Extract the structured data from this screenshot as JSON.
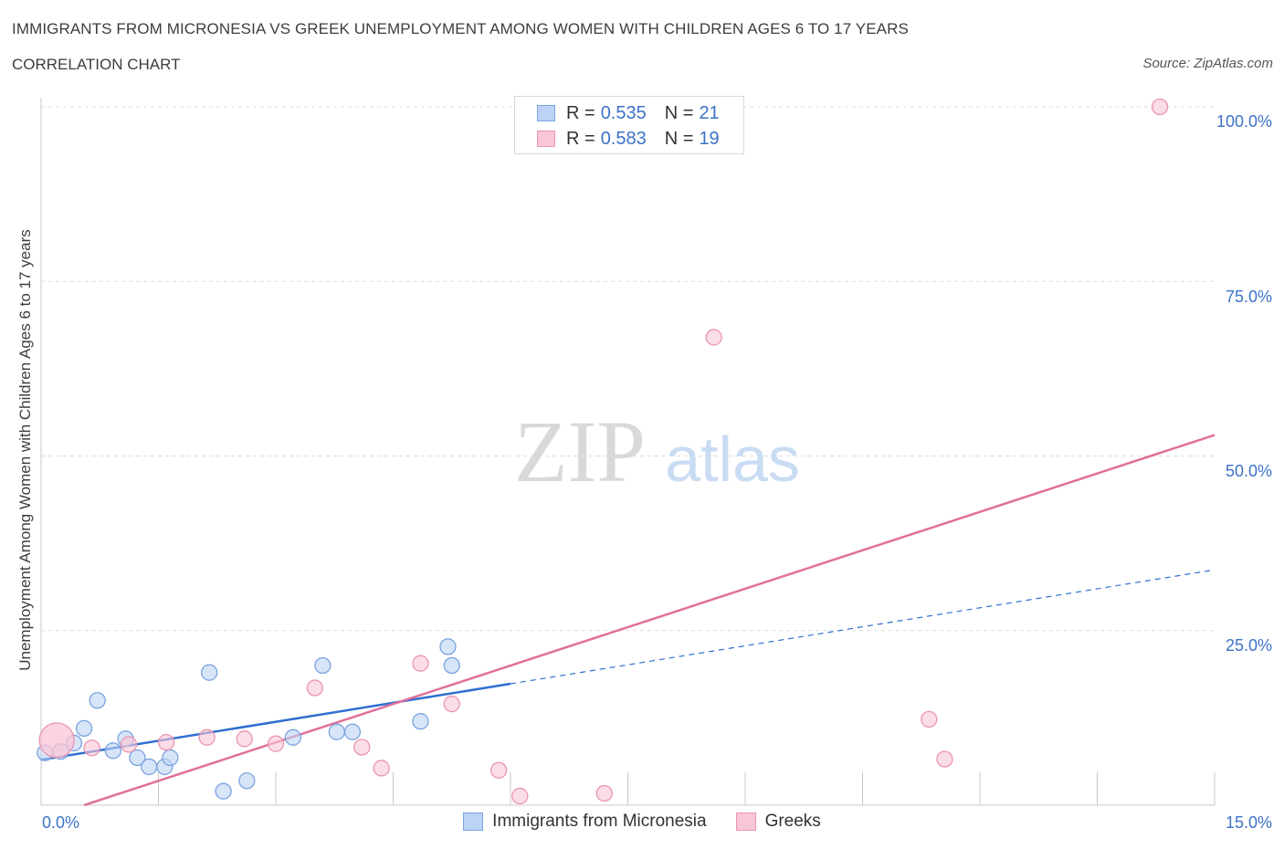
{
  "title": "IMMIGRANTS FROM MICRONESIA VS GREEK UNEMPLOYMENT AMONG WOMEN WITH CHILDREN AGES 6 TO 17 YEARS",
  "subtitle": "CORRELATION CHART",
  "source": "Source: ZipAtlas.com",
  "watermark": {
    "zip": "ZIP",
    "atlas": "atlas"
  },
  "stats": [
    {
      "r_label": "R = ",
      "r_value": "0.535",
      "n_label": "N = ",
      "n_value": "21",
      "fill": "#bcd3f5",
      "stroke": "#7aa3e0"
    },
    {
      "r_label": "R = ",
      "r_value": "0.583",
      "n_label": "N = ",
      "n_value": "19",
      "fill": "#f9c6d5",
      "stroke": "#e996b1"
    }
  ],
  "chart_data": {
    "type": "scatter",
    "title": "IMMIGRANTS FROM MICRONESIA VS GREEK UNEMPLOYMENT AMONG WOMEN WITH CHILDREN AGES 6 TO 17 YEARS",
    "xlabel": "",
    "ylabel": "Unemployment Among Women with Children Ages 6 to 17 years",
    "xlim": [
      0,
      15
    ],
    "ylim": [
      0,
      100
    ],
    "x_tick_labels": [
      "0.0%",
      "15.0%"
    ],
    "y_tick_labels": [
      "100.0%",
      "75.0%",
      "50.0%",
      "25.0%"
    ],
    "y_tick_values": [
      100,
      75,
      50,
      25
    ],
    "grid": true,
    "series": [
      {
        "name": "Immigrants from Micronesia",
        "color": "#7aa3e0",
        "fill": "#bcd3f5",
        "line_color": "#2f6fd0",
        "points": [
          {
            "x": 0.05,
            "y": 7.5
          },
          {
            "x": 0.25,
            "y": 7.7
          },
          {
            "x": 0.42,
            "y": 8.9
          },
          {
            "x": 0.55,
            "y": 11.0
          },
          {
            "x": 0.72,
            "y": 15.0
          },
          {
            "x": 0.92,
            "y": 7.8
          },
          {
            "x": 1.08,
            "y": 9.5
          },
          {
            "x": 1.23,
            "y": 6.8
          },
          {
            "x": 1.38,
            "y": 5.5
          },
          {
            "x": 1.58,
            "y": 5.5
          },
          {
            "x": 1.65,
            "y": 6.8
          },
          {
            "x": 2.15,
            "y": 19.0
          },
          {
            "x": 2.33,
            "y": 2.0
          },
          {
            "x": 2.63,
            "y": 3.5
          },
          {
            "x": 3.22,
            "y": 9.7
          },
          {
            "x": 3.6,
            "y": 20.0
          },
          {
            "x": 3.78,
            "y": 10.5
          },
          {
            "x": 3.98,
            "y": 10.5
          },
          {
            "x": 4.85,
            "y": 12.0
          },
          {
            "x": 5.2,
            "y": 22.7
          },
          {
            "x": 5.25,
            "y": 20.0
          }
        ],
        "trend": {
          "x_start": 0,
          "y_start": 6.5,
          "x_solid_end": 6.0,
          "x_end": 15.0,
          "y_end": 33.7
        }
      },
      {
        "name": "Greeks",
        "color": "#e996b1",
        "fill": "#f9c6d5",
        "line_color": "#e0709a",
        "points": [
          {
            "x": 0.2,
            "y": 9.3,
            "big": true
          },
          {
            "x": 0.65,
            "y": 8.2
          },
          {
            "x": 1.12,
            "y": 8.7
          },
          {
            "x": 1.6,
            "y": 9.0
          },
          {
            "x": 2.12,
            "y": 9.7
          },
          {
            "x": 2.6,
            "y": 9.5
          },
          {
            "x": 3.0,
            "y": 8.8
          },
          {
            "x": 3.5,
            "y": 16.8
          },
          {
            "x": 4.1,
            "y": 8.3
          },
          {
            "x": 4.35,
            "y": 5.3
          },
          {
            "x": 4.85,
            "y": 20.3
          },
          {
            "x": 5.25,
            "y": 14.5
          },
          {
            "x": 5.85,
            "y": 5.0
          },
          {
            "x": 6.12,
            "y": 1.3
          },
          {
            "x": 7.2,
            "y": 1.7
          },
          {
            "x": 8.6,
            "y": 67.0
          },
          {
            "x": 11.35,
            "y": 12.3
          },
          {
            "x": 11.55,
            "y": 6.6
          },
          {
            "x": 14.3,
            "y": 100.0
          }
        ],
        "trend": {
          "x_start": 0.55,
          "y_start": 0.0,
          "x_end": 15.0,
          "y_end": 53.0
        }
      }
    ]
  }
}
